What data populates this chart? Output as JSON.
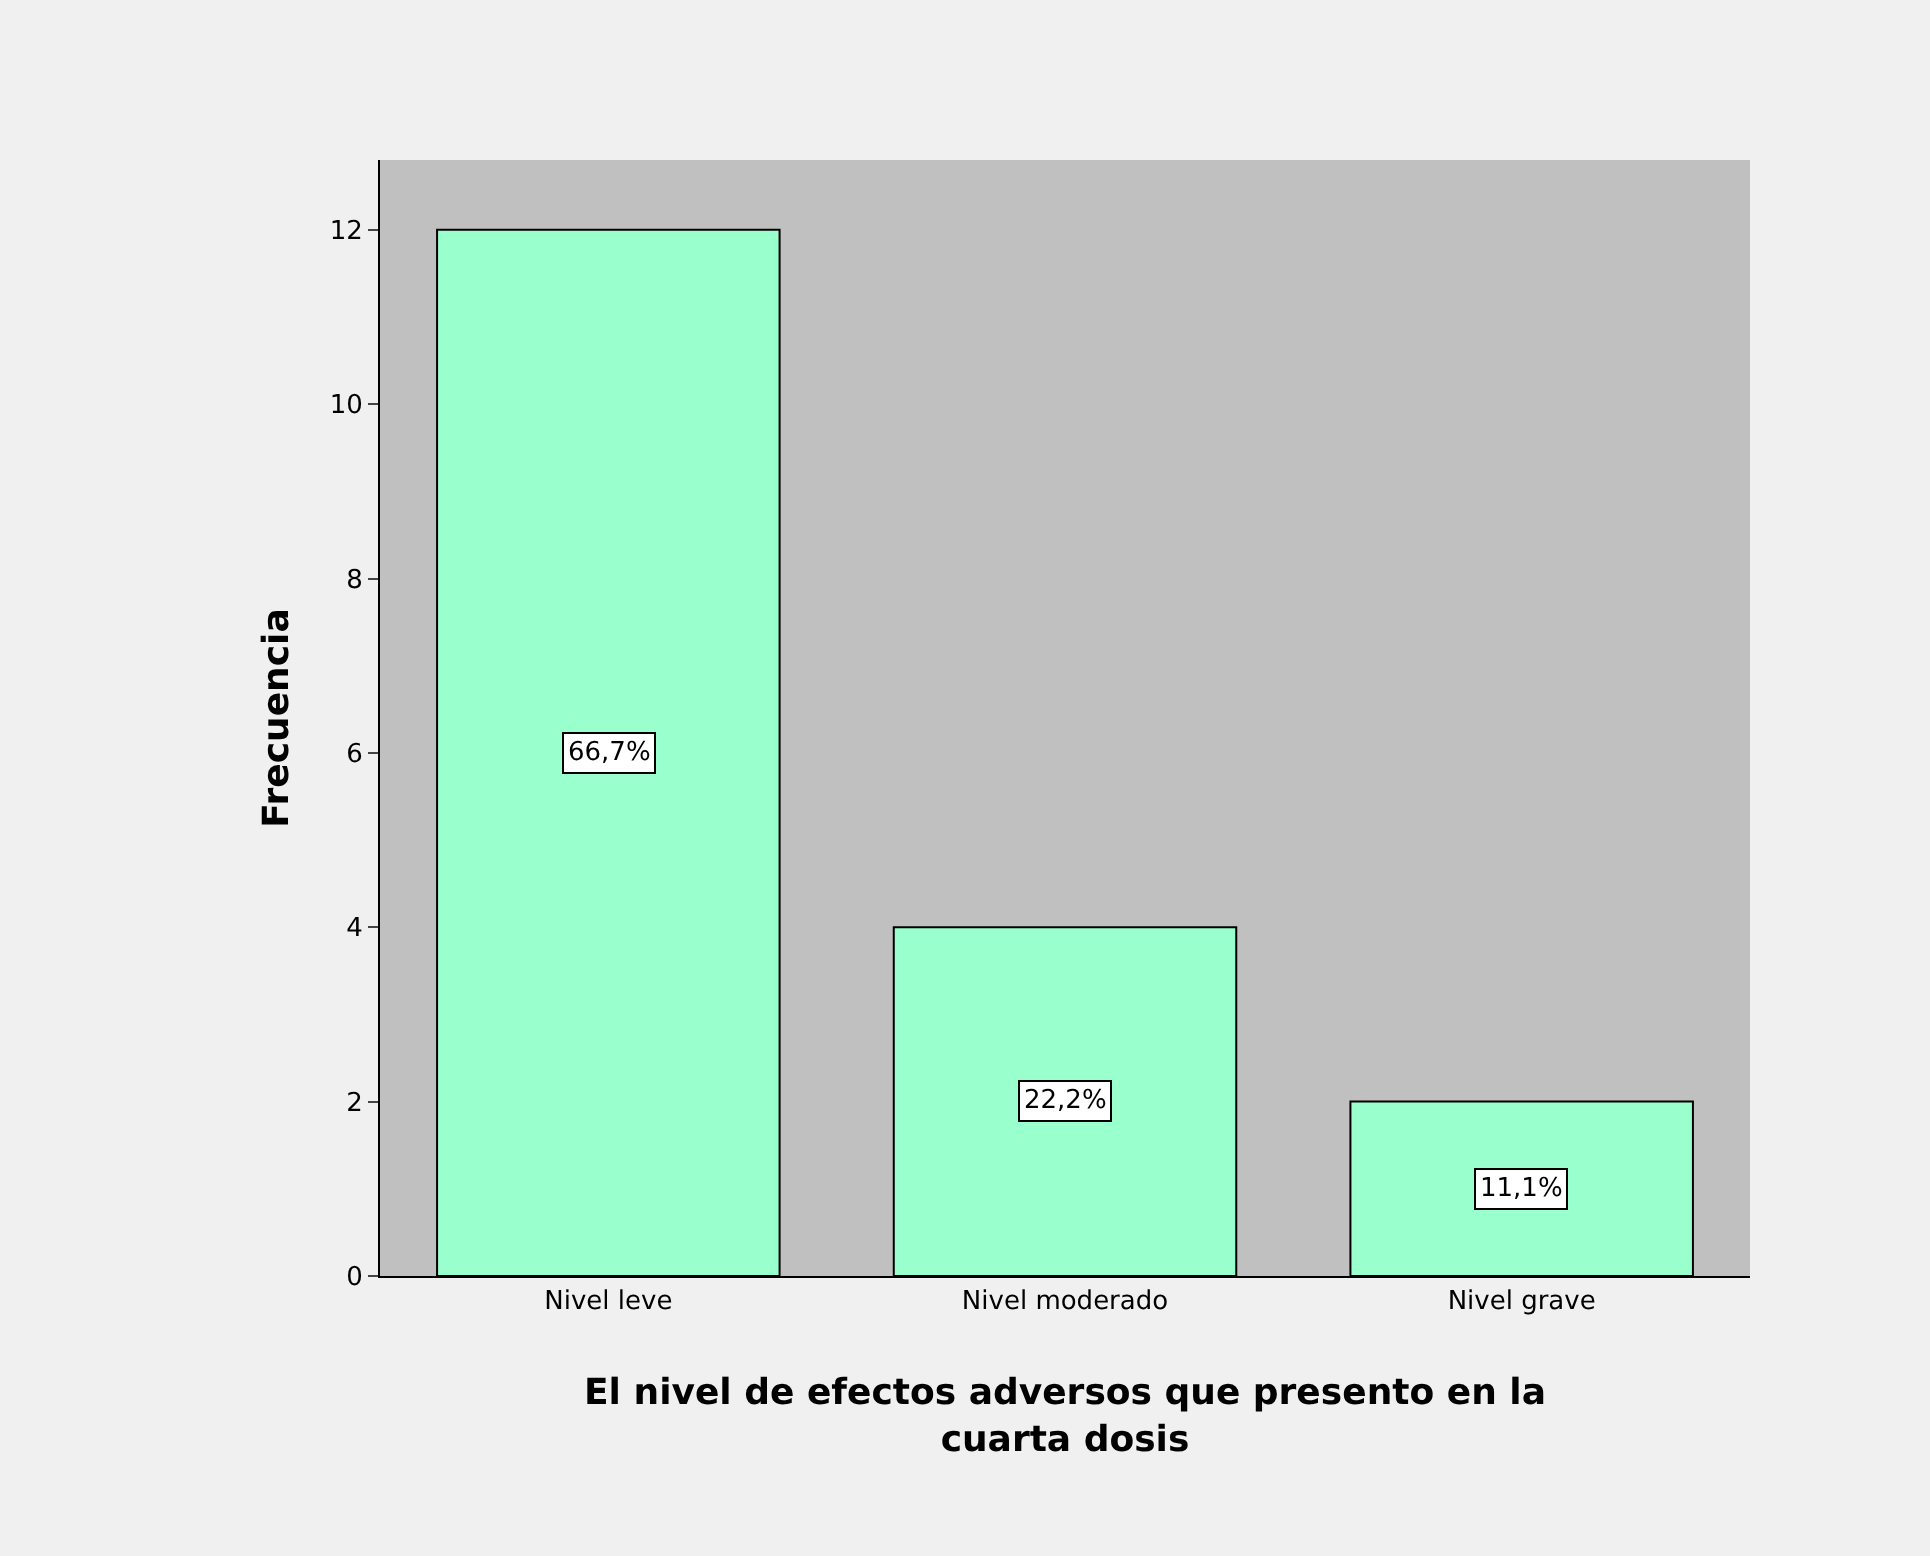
{
  "chart_data": {
    "type": "bar",
    "categories": [
      "Nivel leve",
      "Nivel moderado",
      "Nivel grave"
    ],
    "values": [
      12,
      4,
      2
    ],
    "annotations": [
      "66,7%",
      "22,2%",
      "11,1%"
    ],
    "color": "#99ffcc",
    "xlabel": "El nivel de efectos adversos que presento en la cuarta dosis",
    "ylabel": "Frecuencia",
    "ylim": [
      0,
      12.8
    ],
    "yticks": [
      0,
      2,
      4,
      6,
      8,
      10,
      12
    ],
    "grid": false
  }
}
